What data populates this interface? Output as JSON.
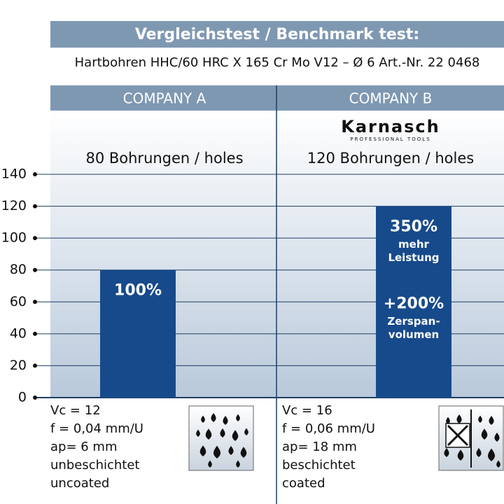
{
  "chart_data": {
    "type": "bar",
    "title": "Vergleichstest / Benchmark test:",
    "subtitle": "Hartbohren HHC/60 HRC X 165 Cr Mo V12 – Ø 6 Art.-Nr. 22 0468",
    "categories": [
      "COMPANY A",
      "COMPANY B"
    ],
    "values": [
      80,
      120
    ],
    "headlines": [
      "80 Bohrungen / holes",
      "120 Bohrungen / holes"
    ],
    "bar_annotations": [
      [
        {
          "text": "100%",
          "lines": []
        }
      ],
      [
        {
          "text": "350%",
          "lines": [
            "mehr",
            "Leistung"
          ]
        },
        {
          "text": "+200%",
          "lines": [
            "Zerspan-",
            "volumen"
          ]
        }
      ]
    ],
    "specs": [
      [
        "Vc = 12",
        "f = 0,04 mm/U",
        "ap= 6 mm",
        "unbeschichtet",
        "uncoated"
      ],
      [
        "Vc = 16",
        "f = 0,06 mm/U",
        "ap= 18 mm",
        "beschichtet",
        "coated"
      ]
    ],
    "logo": {
      "name": "Karnasch",
      "tagline": "PROFESSIONAL TOOLS"
    },
    "color": "#174a8b",
    "ylim": [
      0,
      140
    ],
    "yticks": [
      0,
      20,
      40,
      60,
      80,
      100,
      120,
      140
    ],
    "grid": true
  }
}
